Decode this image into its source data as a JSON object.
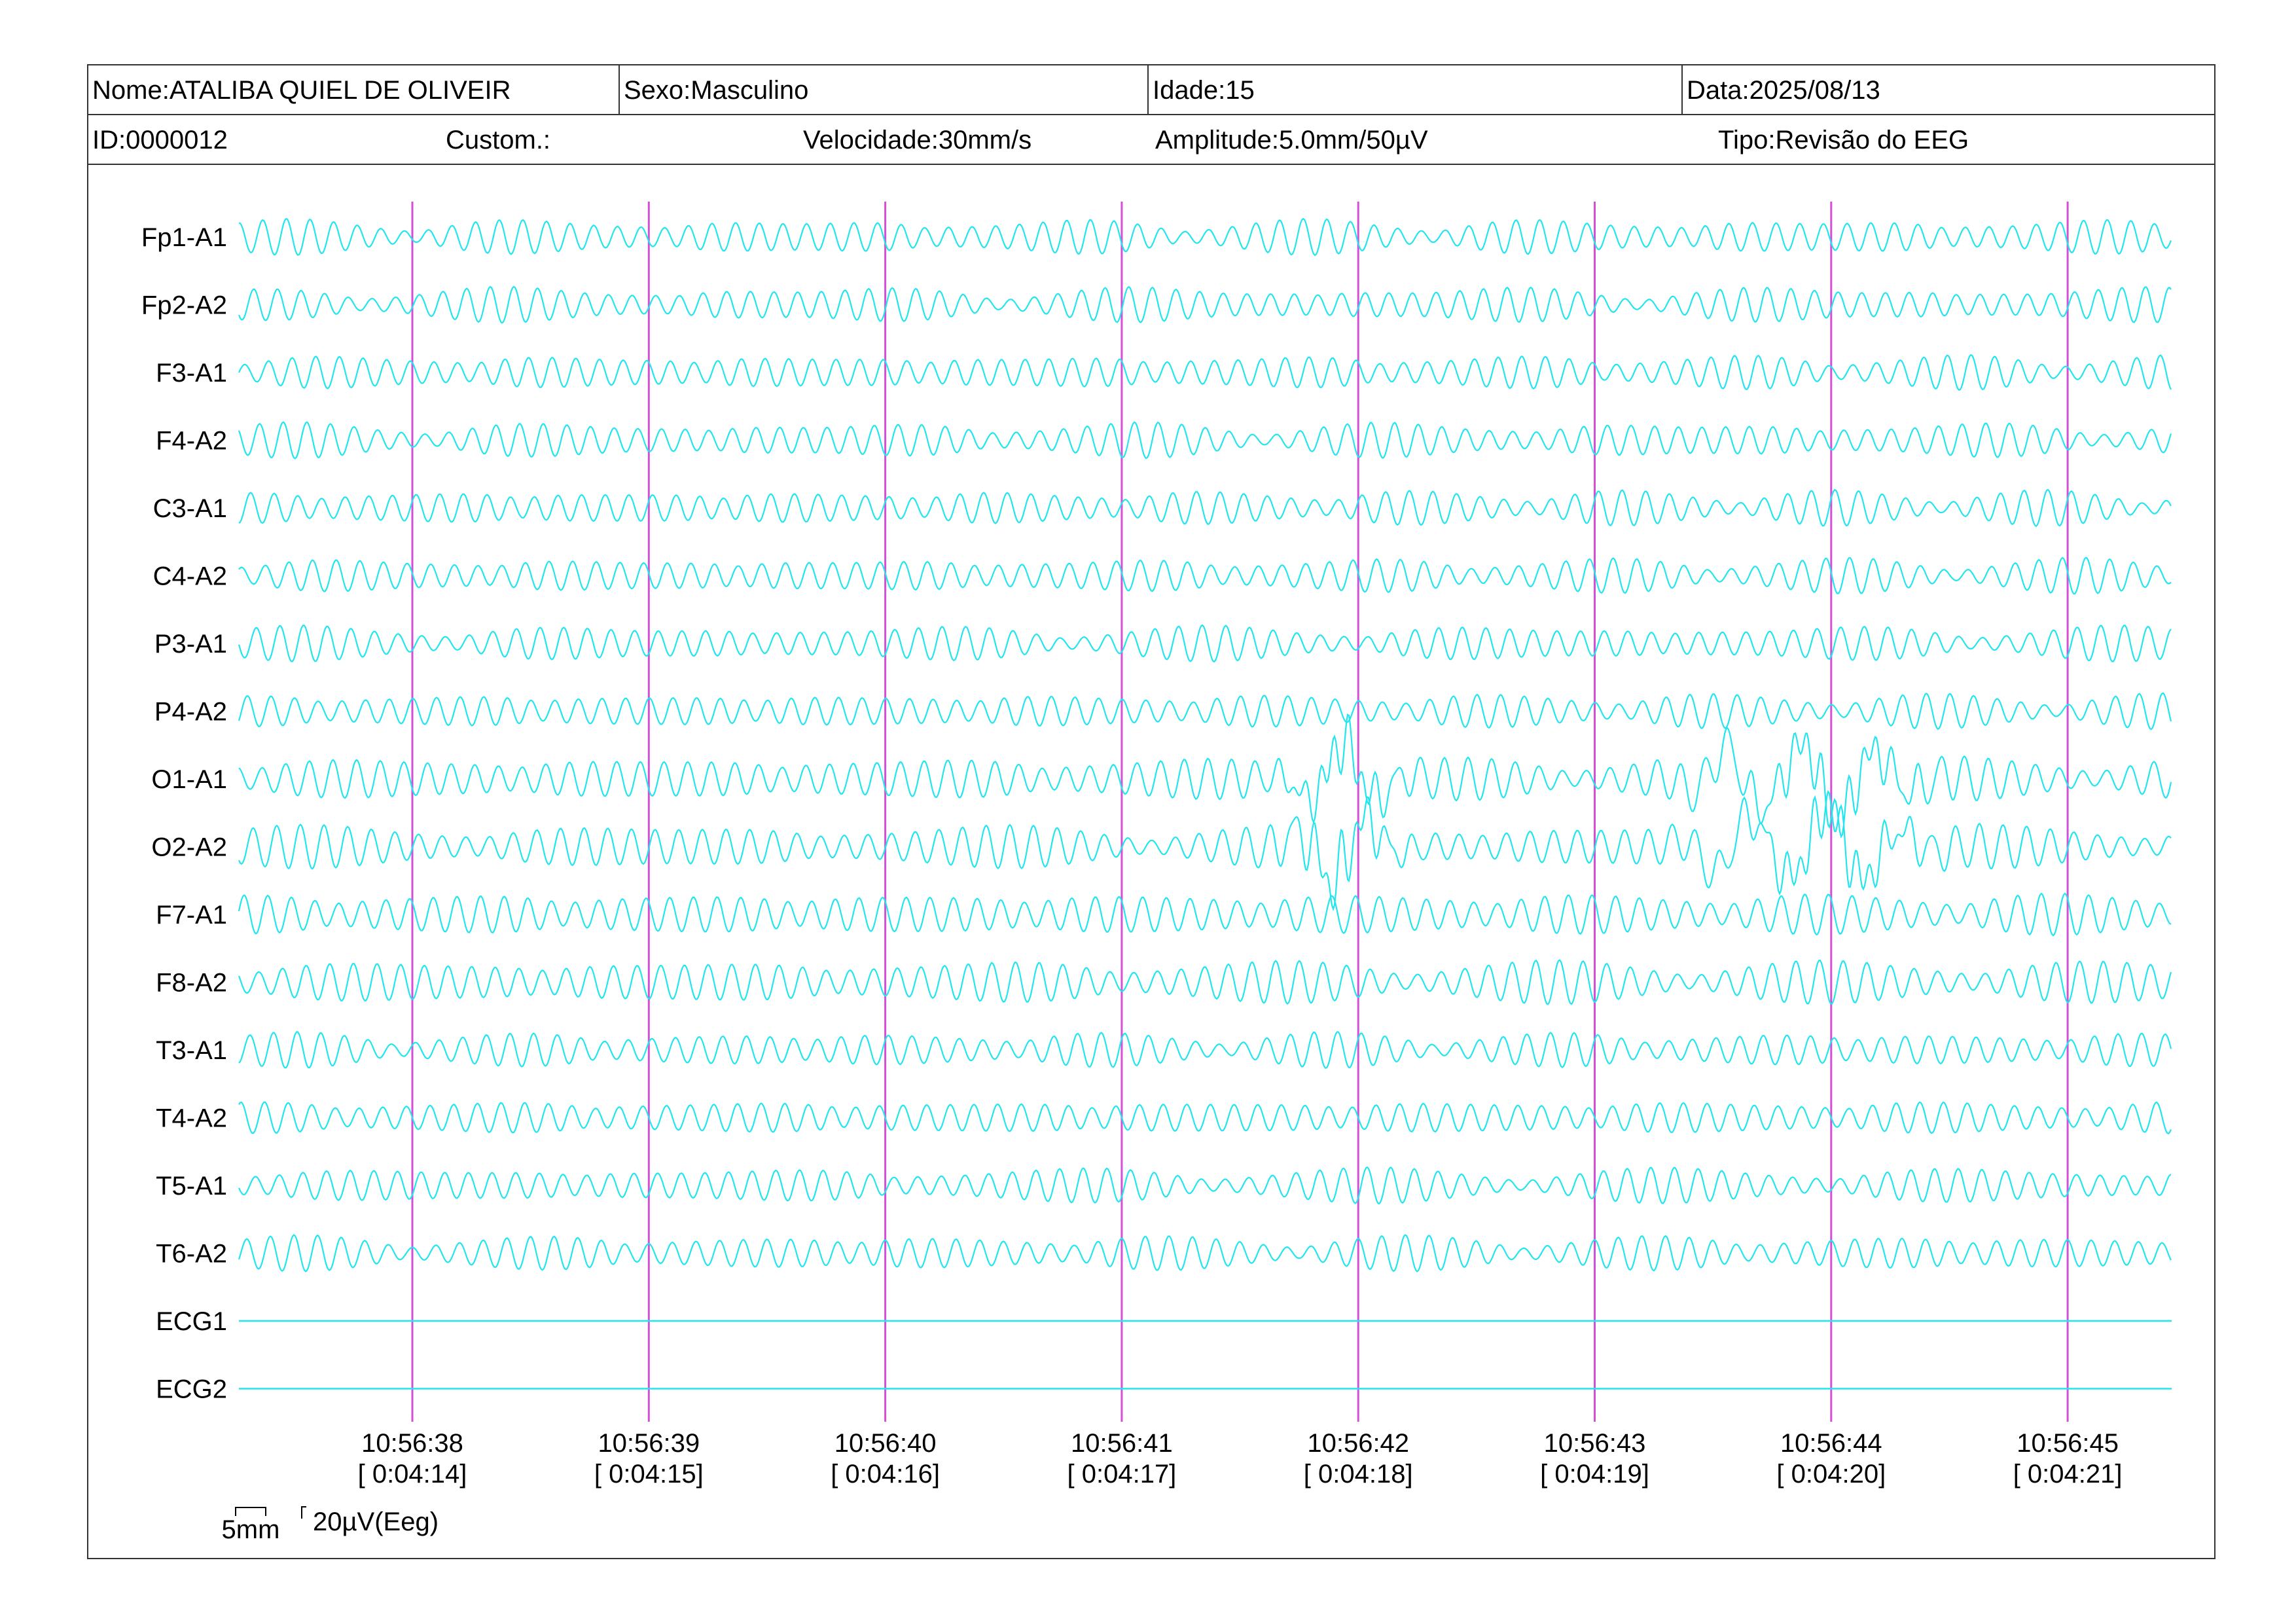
{
  "header": {
    "nome": "Nome:ATALIBA QUIEL DE OLIVEIR",
    "sexo": "Sexo:Masculino",
    "idade": "Idade:15",
    "data": "Data:2025/08/13",
    "id": "ID:0000012",
    "custom": "Custom.:",
    "velocidade": "Velocidade:30mm/s",
    "amplitude": "Amplitude:5.0mm/50µV",
    "tipo": "Tipo:Revisão do EEG"
  },
  "colors": {
    "trace": "#22e5ee",
    "marker": "#d24fd6",
    "border": "#333333",
    "text": "#000000"
  },
  "chart_data": {
    "type": "line",
    "channels": [
      "Fp1-A1",
      "Fp2-A2",
      "F3-A1",
      "F4-A2",
      "C3-A1",
      "C4-A2",
      "P3-A1",
      "P4-A2",
      "O1-A1",
      "O2-A2",
      "F7-A1",
      "F8-A2",
      "T3-A1",
      "T4-A2",
      "T5-A1",
      "T6-A2",
      "ECG1",
      "ECG2"
    ],
    "flat_channels": [
      "ECG1",
      "ECG2"
    ],
    "artifact_channels": [
      "O1-A1",
      "O2-A2"
    ],
    "time_marks": [
      {
        "clock": "10:56:38",
        "elapsed": "[ 0:04:14]"
      },
      {
        "clock": "10:56:39",
        "elapsed": "[ 0:04:15]"
      },
      {
        "clock": "10:56:40",
        "elapsed": "[ 0:04:16]"
      },
      {
        "clock": "10:56:41",
        "elapsed": "[ 0:04:17]"
      },
      {
        "clock": "10:56:42",
        "elapsed": "[ 0:04:18]"
      },
      {
        "clock": "10:56:43",
        "elapsed": "[ 0:04:19]"
      },
      {
        "clock": "10:56:44",
        "elapsed": "[ 0:04:20]"
      },
      {
        "clock": "10:56:45",
        "elapsed": "[ 0:04:21]"
      }
    ],
    "dominant_frequency_hz": 10,
    "seconds_shown": 8.2,
    "scale_bar": {
      "time_label": "5mm",
      "amplitude_label": "20µV(Eeg)"
    }
  }
}
